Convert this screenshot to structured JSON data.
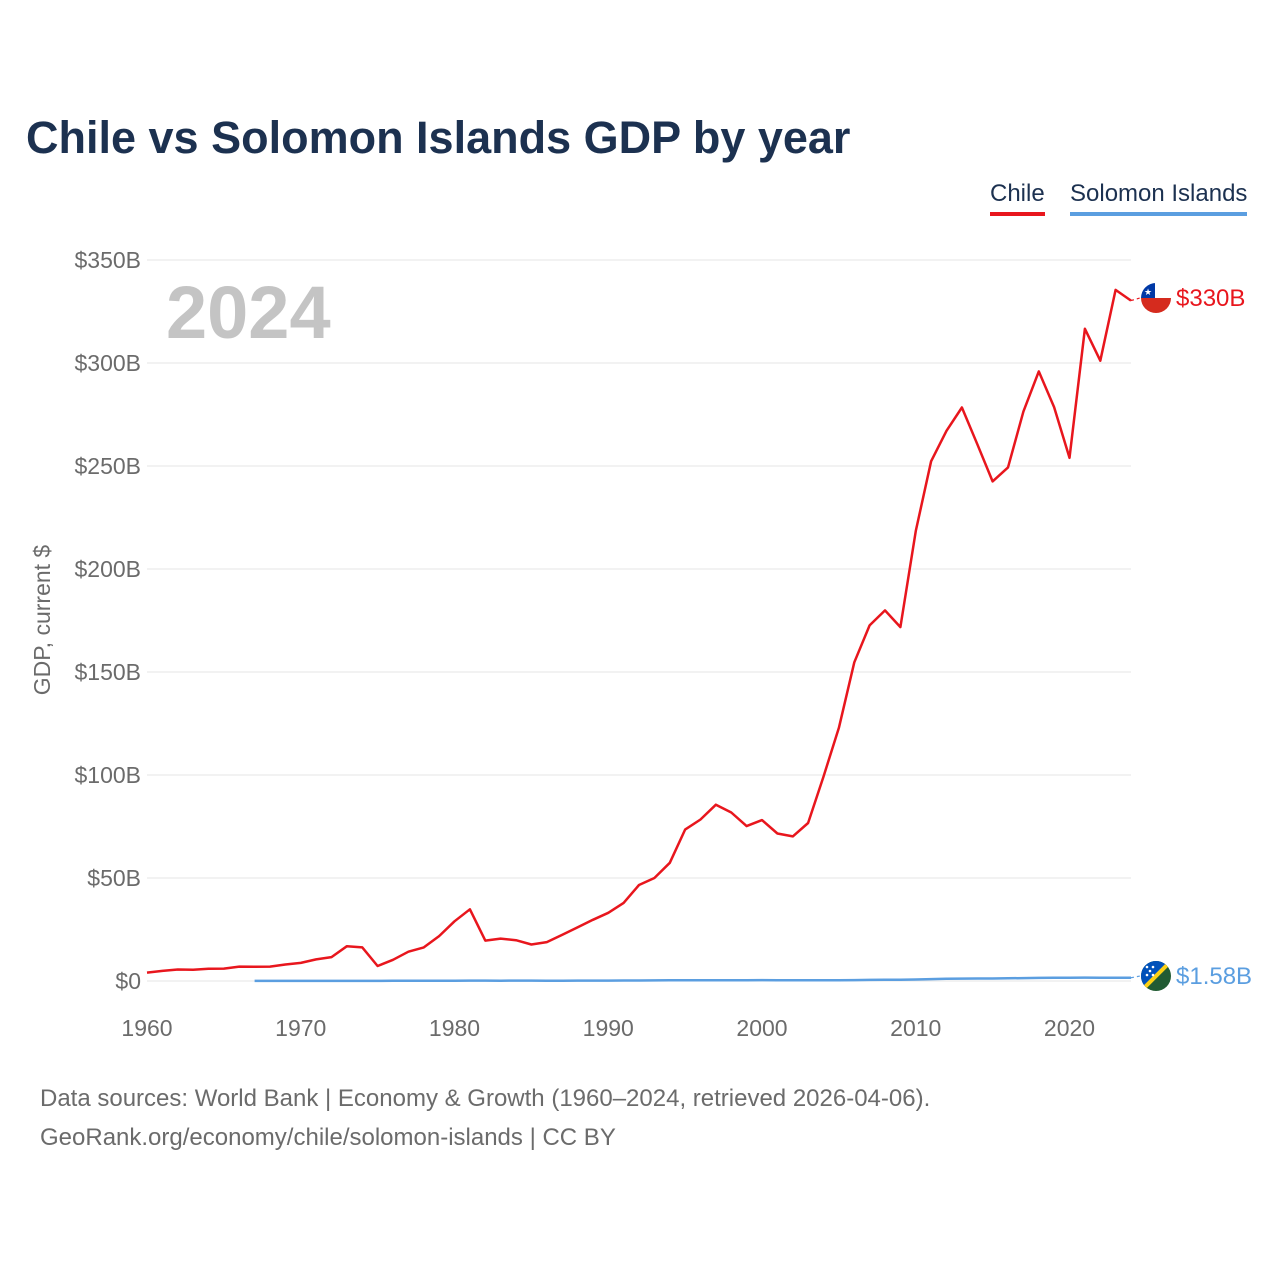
{
  "title": "Chile vs Solomon Islands GDP by year",
  "colors": {
    "chile": "#e8161d",
    "solomon": "#5b9ee0",
    "title": "#1c3150"
  },
  "chart_data": {
    "type": "line",
    "title": "Chile vs Solomon Islands GDP by year",
    "xlabel": "",
    "ylabel": "GDP, current $",
    "year_label": "2024",
    "xlim": [
      1960,
      2024
    ],
    "ylim": [
      0,
      350
    ],
    "x_ticks": [
      1960,
      1970,
      1980,
      1990,
      2000,
      2010,
      2020
    ],
    "y_ticks": [
      0,
      50,
      100,
      150,
      200,
      250,
      300,
      350
    ],
    "y_tick_labels": [
      "$0",
      "$50B",
      "$100B",
      "$150B",
      "$200B",
      "$250B",
      "$300B",
      "$350B"
    ],
    "legend": [
      "Chile",
      "Solomon Islands"
    ],
    "grid": true,
    "series": [
      {
        "name": "Chile",
        "end_label": "$330B",
        "x": [
          1960,
          1961,
          1962,
          1963,
          1964,
          1965,
          1966,
          1967,
          1968,
          1969,
          1970,
          1971,
          1972,
          1973,
          1974,
          1975,
          1976,
          1977,
          1978,
          1979,
          1980,
          1981,
          1982,
          1983,
          1984,
          1985,
          1986,
          1987,
          1988,
          1989,
          1990,
          1991,
          1992,
          1993,
          1994,
          1995,
          1996,
          1997,
          1998,
          1999,
          2000,
          2001,
          2002,
          2003,
          2004,
          2005,
          2006,
          2007,
          2008,
          2009,
          2010,
          2011,
          2012,
          2013,
          2014,
          2015,
          2016,
          2017,
          2018,
          2019,
          2020,
          2021,
          2022,
          2023,
          2024
        ],
        "values": [
          4.1,
          4.9,
          5.6,
          5.5,
          5.9,
          6.0,
          7.0,
          6.9,
          7.0,
          8.0,
          8.8,
          10.5,
          11.6,
          16.9,
          16.3,
          7.3,
          10.3,
          14.2,
          16.3,
          21.8,
          29.0,
          34.8,
          19.6,
          20.6,
          19.8,
          17.7,
          18.9,
          22.4,
          26.0,
          29.7,
          33.1,
          37.9,
          46.6,
          50.0,
          57.4,
          73.5,
          78.4,
          85.6,
          81.8,
          75.2,
          78.1,
          71.6,
          70.2,
          76.7,
          99.2,
          122.9,
          154.7,
          172.6,
          179.9,
          171.8,
          218.5,
          252.3,
          267.1,
          278.4,
          260.6,
          242.5,
          249.3,
          276.4,
          295.9,
          278.6,
          254.0,
          316.6,
          301.1,
          335.5,
          330.3
        ]
      },
      {
        "name": "Solomon Islands",
        "end_label": "$1.58B",
        "x": [
          1967,
          1968,
          1969,
          1970,
          1971,
          1972,
          1973,
          1974,
          1975,
          1976,
          1977,
          1978,
          1979,
          1980,
          1981,
          1982,
          1983,
          1984,
          1985,
          1986,
          1987,
          1988,
          1989,
          1990,
          1991,
          1992,
          1993,
          1994,
          1995,
          1996,
          1997,
          1998,
          1999,
          2000,
          2001,
          2002,
          2003,
          2004,
          2005,
          2006,
          2007,
          2008,
          2009,
          2010,
          2011,
          2012,
          2013,
          2014,
          2015,
          2016,
          2017,
          2018,
          2019,
          2020,
          2021,
          2022,
          2023,
          2024
        ],
        "values": [
          0.03,
          0.03,
          0.03,
          0.04,
          0.04,
          0.05,
          0.05,
          0.06,
          0.07,
          0.08,
          0.09,
          0.1,
          0.12,
          0.14,
          0.18,
          0.17,
          0.16,
          0.19,
          0.18,
          0.14,
          0.15,
          0.18,
          0.19,
          0.21,
          0.24,
          0.26,
          0.29,
          0.32,
          0.35,
          0.38,
          0.4,
          0.33,
          0.33,
          0.43,
          0.41,
          0.34,
          0.34,
          0.38,
          0.41,
          0.46,
          0.54,
          0.61,
          0.61,
          0.71,
          0.92,
          1.05,
          1.16,
          1.22,
          1.23,
          1.29,
          1.4,
          1.52,
          1.58,
          1.55,
          1.63,
          1.6,
          1.57,
          1.58
        ]
      }
    ]
  },
  "footer": {
    "line1": "Data sources: World Bank | Economy & Growth (1960–2024, retrieved 2026-04-06).",
    "line2": "GeoRank.org/economy/chile/solomon-islands | CC BY"
  }
}
